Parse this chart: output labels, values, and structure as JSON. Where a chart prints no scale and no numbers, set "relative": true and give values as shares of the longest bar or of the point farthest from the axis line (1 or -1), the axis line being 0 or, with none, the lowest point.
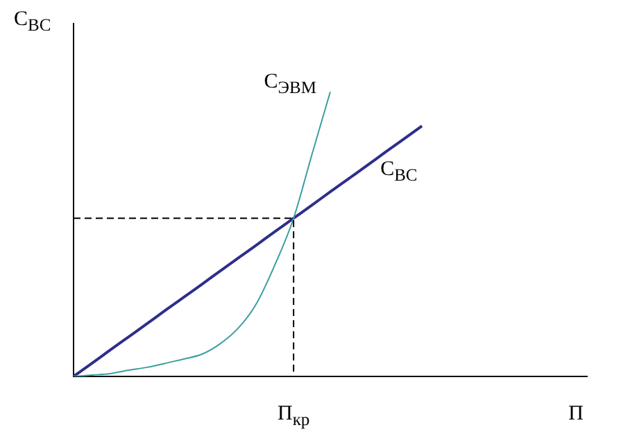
{
  "chart_data": {
    "type": "line",
    "relative": true,
    "xlabel": "П",
    "ylabel": "С$_{ВС}$",
    "categories": [
      null,
      null,
      null,
      null,
      null,
      null,
      null,
      null,
      null,
      null,
      null,
      null,
      null,
      null,
      null,
      null,
      null,
      null,
      null,
      null,
      null,
      null,
      null,
      null,
      null,
      null,
      null,
      null,
      null
    ],
    "series": [
      {
        "name": "С$_{ЭВМ}$",
        "color": "#3a9ea0",
        "values": [
          0,
          0.005,
          0.01,
          0.022,
          0.032,
          0.046,
          0.061,
          0.078,
          0.115,
          0.171,
          0.259,
          0.395,
          0.556,
          0.78,
          1,
          null,
          null,
          null,
          null,
          null,
          null,
          null,
          null,
          null,
          null,
          null,
          null,
          null,
          null
        ]
      },
      {
        "name": "С$_{ВС}$",
        "color": "#2e2e8c",
        "values": [
          0,
          0.046,
          0.093,
          0.139,
          0.185,
          0.232,
          0.278,
          0.324,
          0.371,
          0.417,
          0.463,
          0.51,
          0.556,
          0.602,
          0.649,
          0.695,
          0.741,
          0.788,
          0.834,
          0.88,
          null,
          null,
          null,
          null,
          null,
          null,
          null,
          null,
          null
        ]
      }
    ],
    "ref_lines": [
      {
        "axis": "y",
        "value": 0.556,
        "line_style": "dashed",
        "color": "#000000"
      }
    ],
    "annotations": [
      "П$_{кр}$"
    ],
    "legend": false,
    "grid": false
  }
}
